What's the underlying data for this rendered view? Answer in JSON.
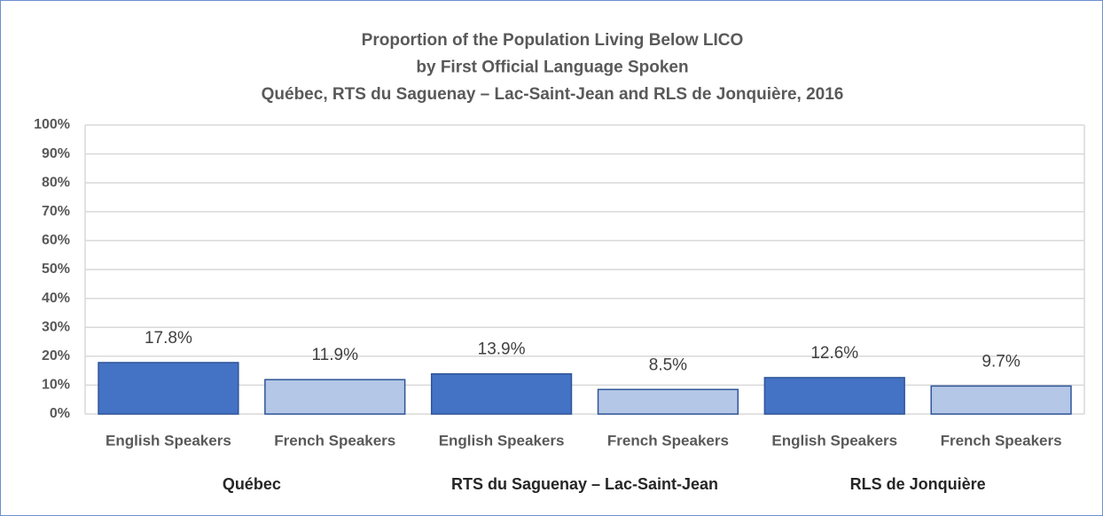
{
  "chart_data": {
    "type": "bar",
    "title": [
      "Proportion of the Population Living Below LICO",
      "by First Official Language Spoken",
      "Québec, RTS du Saguenay – Lac-Saint-Jean and RLS de Jonquière, 2016"
    ],
    "categories": [
      "English Speakers",
      "French Speakers",
      "English Speakers",
      "French Speakers",
      "English Speakers",
      "French Speakers"
    ],
    "groups": [
      "Québec",
      "RTS du Saguenay – Lac-Saint-Jean",
      "RLS de Jonquière"
    ],
    "values": [
      17.8,
      11.9,
      13.9,
      8.5,
      12.6,
      9.7
    ],
    "value_labels": [
      "17.8%",
      "11.9%",
      "13.9%",
      "8.5%",
      "12.6%",
      "9.7%"
    ],
    "colors": [
      "#4472c4",
      "#b4c7e7",
      "#4472c4",
      "#b4c7e7",
      "#4472c4",
      "#b4c7e7"
    ],
    "ylim": [
      0,
      100
    ],
    "yticks": [
      {
        "value": 0,
        "label": "0%"
      },
      {
        "value": 10,
        "label": "10%"
      },
      {
        "value": 20,
        "label": "20%"
      },
      {
        "value": 30,
        "label": "30%"
      },
      {
        "value": 40,
        "label": "40%"
      },
      {
        "value": 50,
        "label": "50%"
      },
      {
        "value": 60,
        "label": "60%"
      },
      {
        "value": 70,
        "label": "70%"
      },
      {
        "value": 80,
        "label": "80%"
      },
      {
        "value": 90,
        "label": "90%"
      },
      {
        "value": 100,
        "label": "100%"
      }
    ],
    "grid": true
  }
}
